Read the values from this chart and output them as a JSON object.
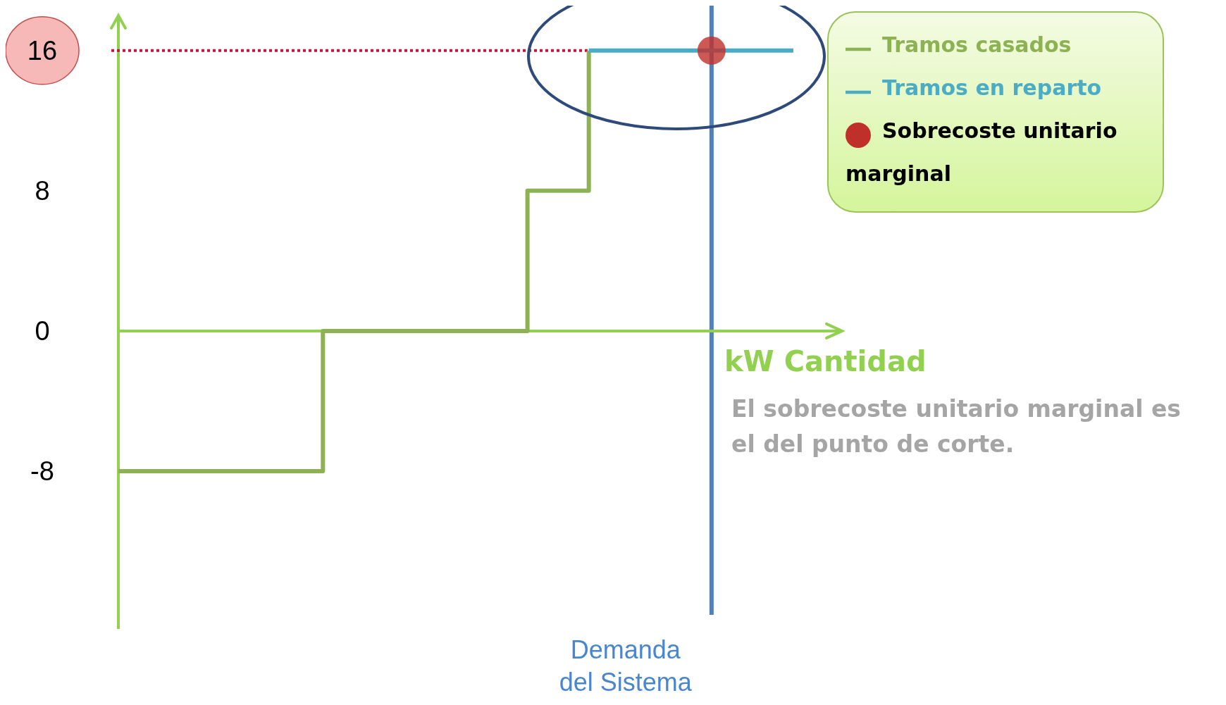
{
  "chart_data": {
    "type": "step",
    "categories": [
      null,
      null,
      null,
      null,
      null,
      null,
      null,
      null,
      null,
      null,
      null,
      null,
      null,
      null,
      null,
      null,
      null,
      null,
      null,
      null,
      null,
      null,
      null,
      null,
      null,
      null,
      null,
      null,
      null,
      null,
      null,
      null,
      null,
      null,
      null
    ],
    "series": [
      {
        "name": "Tramos casados",
        "color": "#8db254",
        "values": [
          -8,
          -8,
          -8,
          -8,
          -8,
          -8,
          -8,
          -8,
          -8,
          -8,
          0,
          0,
          0,
          0,
          0,
          0,
          0,
          0,
          0,
          0,
          8,
          8,
          8,
          16,
          null,
          null,
          null,
          null,
          null,
          null,
          null,
          null,
          null,
          null,
          null
        ]
      },
      {
        "name": "Tramos en reparto",
        "color": "#4bacc6",
        "values": [
          null,
          null,
          null,
          null,
          null,
          null,
          null,
          null,
          null,
          null,
          null,
          null,
          null,
          null,
          null,
          null,
          null,
          null,
          null,
          null,
          null,
          null,
          null,
          16,
          16,
          16,
          16,
          16,
          16,
          null,
          16,
          16,
          16,
          16,
          null
        ]
      },
      {
        "name": "Sobrecoste unitario marginal",
        "type": "scatter",
        "color": "#c0302a",
        "values": [
          null,
          null,
          null,
          null,
          null,
          null,
          null,
          null,
          null,
          null,
          null,
          null,
          null,
          null,
          null,
          null,
          null,
          null,
          null,
          null,
          null,
          null,
          null,
          null,
          null,
          null,
          null,
          null,
          null,
          16,
          null,
          null,
          null,
          null,
          null
        ]
      }
    ],
    "ylim": [
      -17,
      18
    ],
    "yticks": [
      -8,
      0,
      8,
      16
    ],
    "tick_labels": "y",
    "legend": "top right",
    "ref_lines": [
      {
        "axis": "y",
        "value": 0,
        "color": "#92d050"
      },
      {
        "axis": "y",
        "value": 16,
        "color": "#c8143c",
        "line_style": "dotted"
      }
    ],
    "annotations": [
      "kW Cantidad",
      "El sobrecoste unitario marginal es el del punto de corte.",
      "Demanda del Sistema"
    ]
  }
}
